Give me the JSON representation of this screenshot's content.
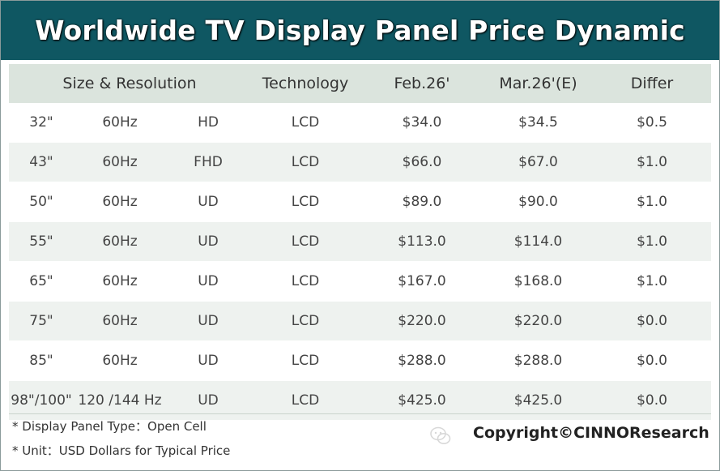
{
  "chart_data": {
    "type": "table",
    "title": "Worldwide TV Display Panel Price Dynamic",
    "columns": [
      "Size & Resolution",
      "Technology",
      "Feb.26'",
      "Mar.26'(E)",
      "Differ"
    ],
    "rows": [
      {
        "size": "32\"",
        "refresh": "60Hz",
        "resolution": "HD",
        "technology": "LCD",
        "feb": "$34.0",
        "mar": "$34.5",
        "differ": "$0.5"
      },
      {
        "size": "43\"",
        "refresh": "60Hz",
        "resolution": "FHD",
        "technology": "LCD",
        "feb": "$66.0",
        "mar": "$67.0",
        "differ": "$1.0"
      },
      {
        "size": "50\"",
        "refresh": "60Hz",
        "resolution": "UD",
        "technology": "LCD",
        "feb": "$89.0",
        "mar": "$90.0",
        "differ": "$1.0"
      },
      {
        "size": "55\"",
        "refresh": "60Hz",
        "resolution": "UD",
        "technology": "LCD",
        "feb": "$113.0",
        "mar": "$114.0",
        "differ": "$1.0"
      },
      {
        "size": "65\"",
        "refresh": "60Hz",
        "resolution": "UD",
        "technology": "LCD",
        "feb": "$167.0",
        "mar": "$168.0",
        "differ": "$1.0"
      },
      {
        "size": "75\"",
        "refresh": "60Hz",
        "resolution": "UD",
        "technology": "LCD",
        "feb": "$220.0",
        "mar": "$220.0",
        "differ": "$0.0"
      },
      {
        "size": "85\"",
        "refresh": "60Hz",
        "resolution": "UD",
        "technology": "LCD",
        "feb": "$288.0",
        "mar": "$288.0",
        "differ": "$0.0"
      },
      {
        "size": "98\"/100\"",
        "refresh": "120 /144 Hz",
        "resolution": "UD",
        "technology": "LCD",
        "feb": "$425.0",
        "mar": "$425.0",
        "differ": "$0.0"
      }
    ],
    "notes": [
      "* Display Panel Type：Open Cell",
      "* Unit：USD Dollars for Typical Price"
    ],
    "copyright": "Copyright©CINNOResearch"
  },
  "colors": {
    "title_bg": "#0f5762",
    "header_bg": "#dbe4dd",
    "alt_row_bg": "#eef2ef"
  },
  "icons": [
    "wechat-watermark-icon"
  ]
}
